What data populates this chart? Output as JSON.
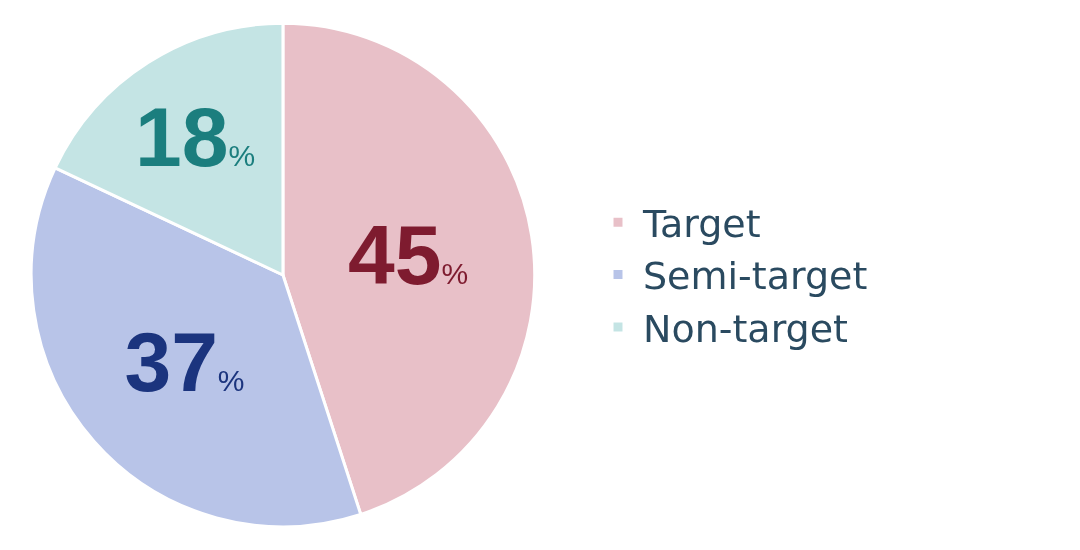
{
  "chart_data": {
    "type": "pie",
    "categories": [
      "Target",
      "Semi-target",
      "Non-target"
    ],
    "values": [
      45,
      37,
      18
    ],
    "colors": [
      "#e8c0c8",
      "#b8c4e8",
      "#c4e4e4"
    ],
    "value_labels": [
      "45%",
      "37%",
      "18%"
    ],
    "legend": "right"
  }
}
